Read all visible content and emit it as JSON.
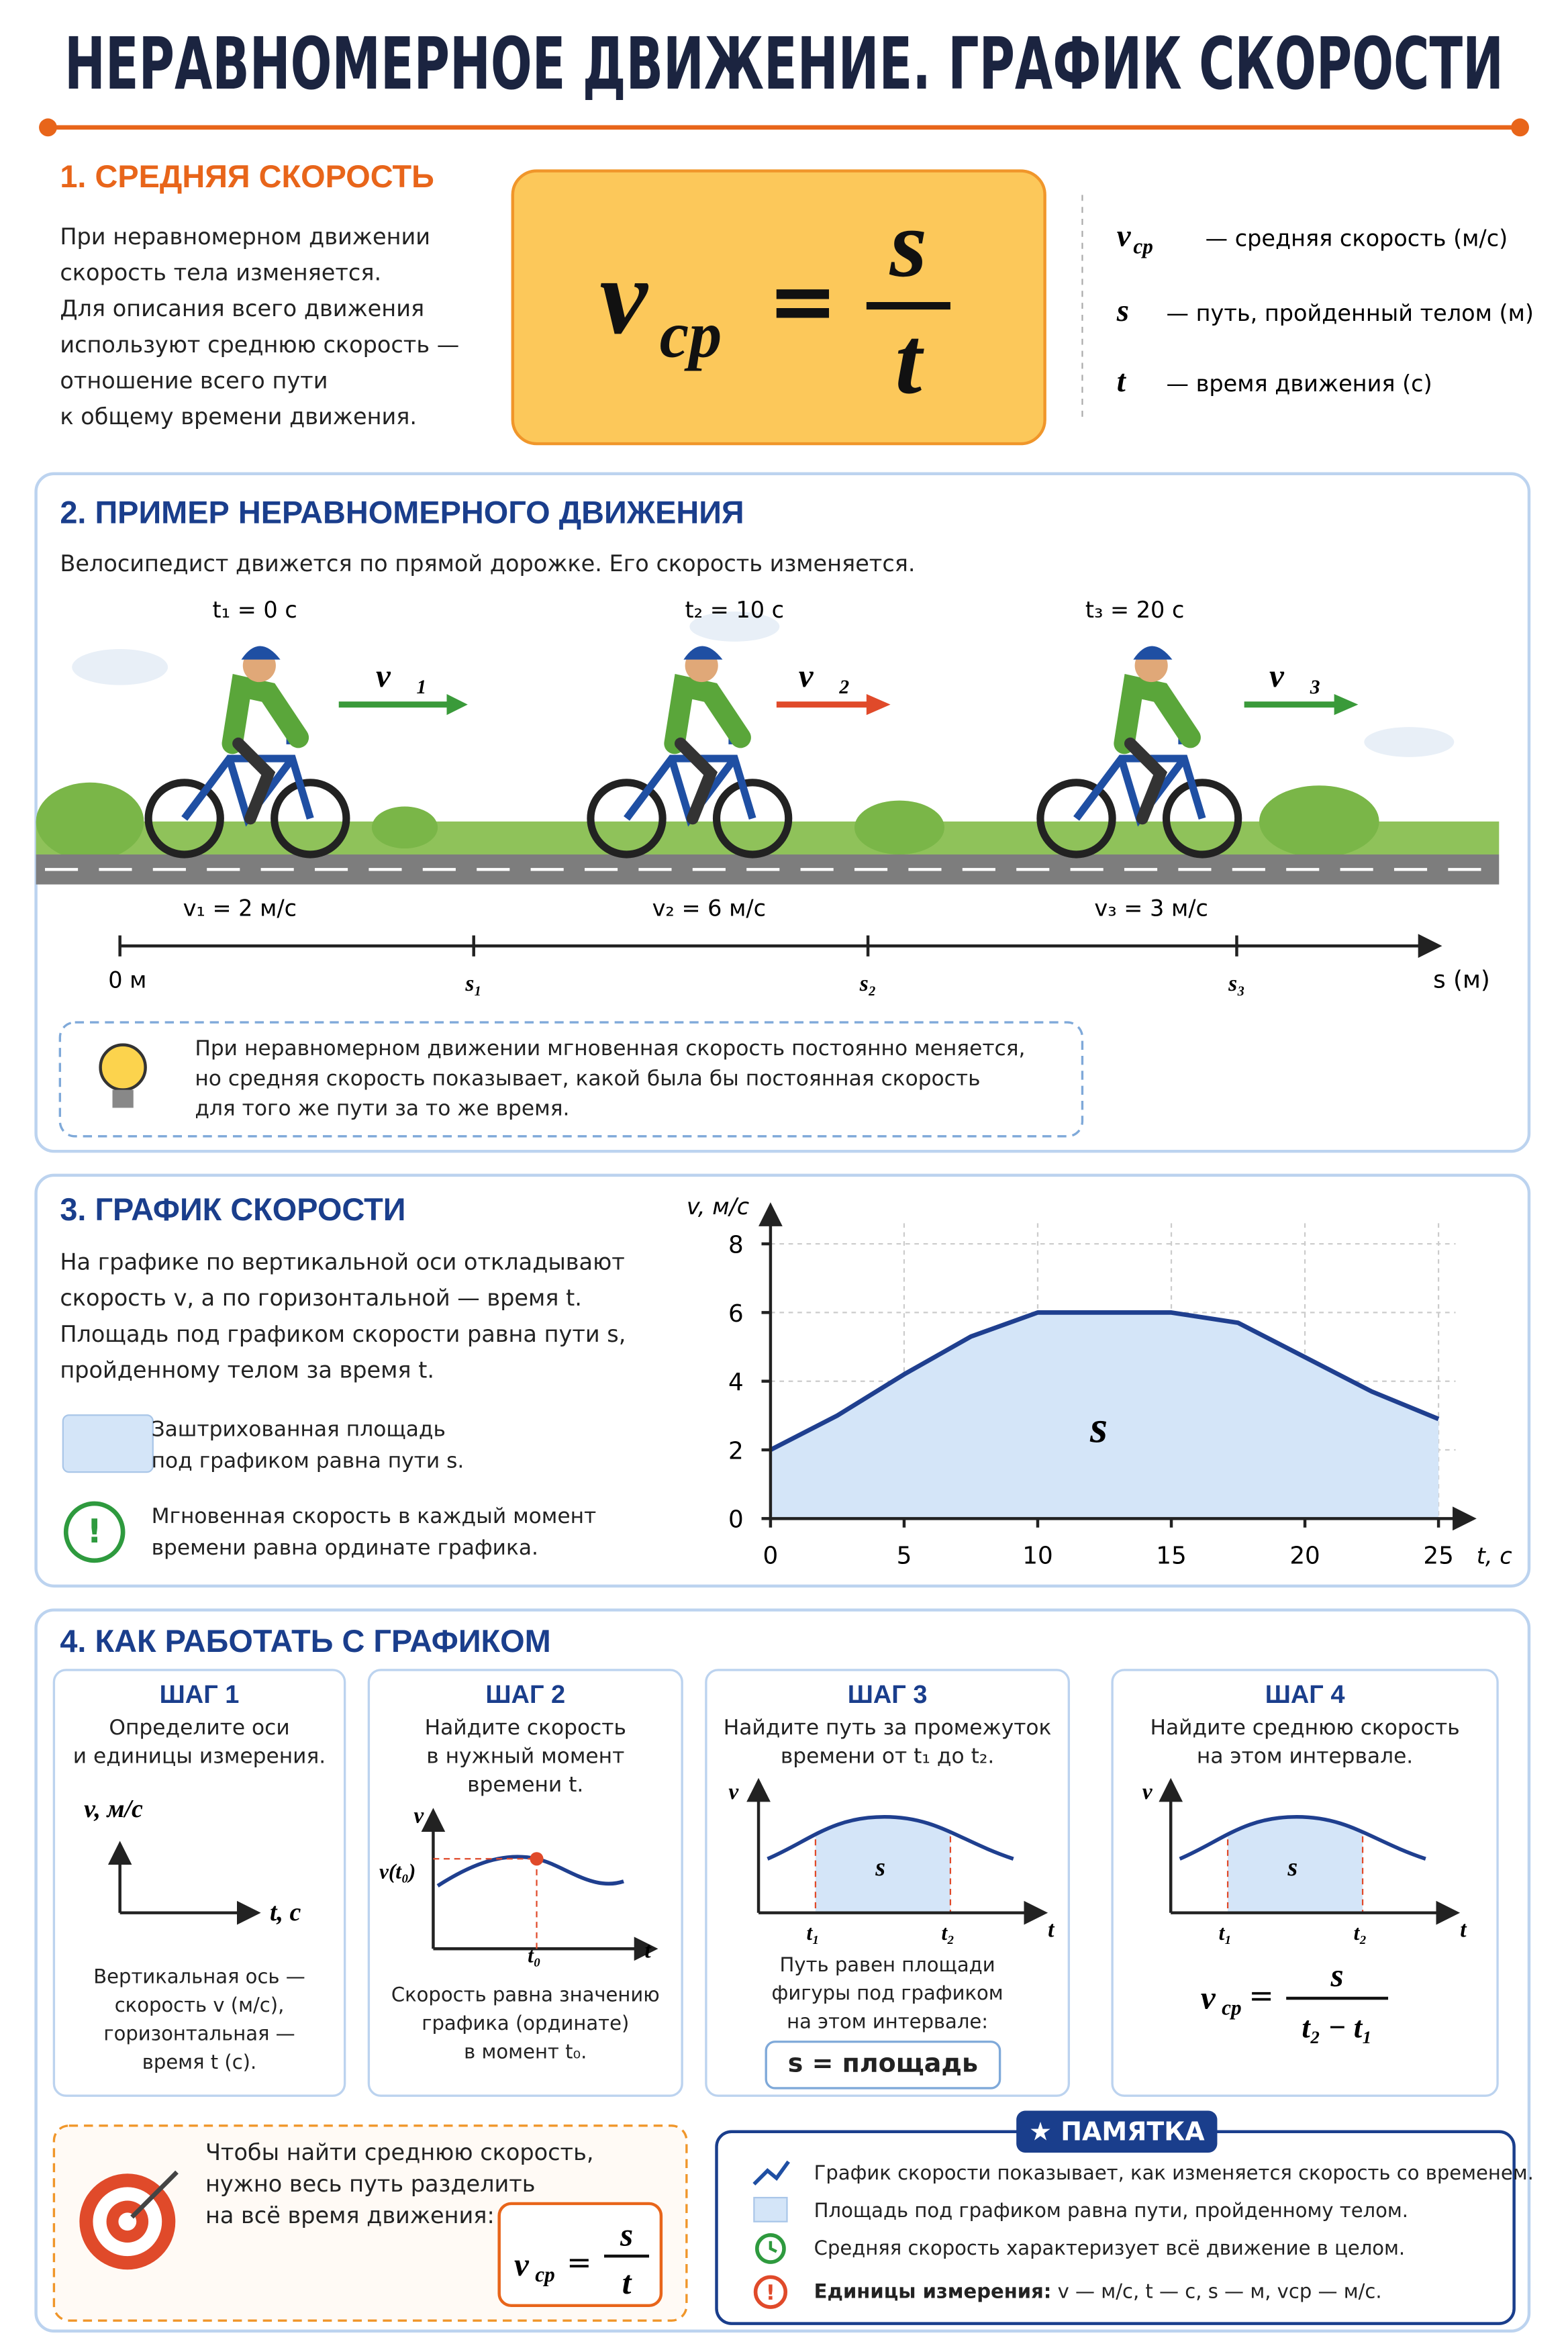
{
  "title": "НЕРАВНОМЕРНОЕ ДВИЖЕНИЕ. ГРАФИК СКОРОСТИ",
  "section1": {
    "heading": "1. СРЕДНЯЯ СКОРОСТЬ",
    "text": "При неравномерном движении\nскорость тела изменяется.\nДля описания всего движения\nиспользуют среднюю скорость —\nотношение всего пути\nк общему времени движения.",
    "formula": {
      "v": "v",
      "sub": "ср",
      "eq": "=",
      "num": "s",
      "den": "t"
    },
    "definitions": [
      {
        "symbol": "v",
        "sub": "ср",
        "text": "— средняя скорость (м/с)"
      },
      {
        "symbol": "s",
        "text": "— путь, пройденный телом (м)"
      },
      {
        "symbol": "t",
        "text": "— время движения (с)"
      }
    ]
  },
  "section2": {
    "heading": "2. ПРИМЕР НЕРАВНОМЕРНОГО ДВИЖЕНИЯ",
    "text": "Велосипедист движется по прямой дорожке. Его скорость изменяется.",
    "riders": [
      {
        "time": "t₁ = 0 с",
        "vector": "v⃗₁",
        "speed": "v₁ = 2 м/с"
      },
      {
        "time": "t₂ = 10 с",
        "vector": "v⃗₂",
        "speed": "v₂ = 6 м/с"
      },
      {
        "time": "t₃ = 20 с",
        "vector": "v⃗₃",
        "speed": "v₃ = 3 м/с"
      }
    ],
    "axis_labels": [
      "0 м",
      "s₁",
      "s₂",
      "s₃",
      "s (м)"
    ],
    "note": "При неравномерном движении мгновенная скорость постоянно меняется,\nно средняя скорость показывает, какой была бы постоянная скорость\nдля того же пути за то же время."
  },
  "section3": {
    "heading": "3. ГРАФИК СКОРОСТИ",
    "text": "На графике по вертикальной оси откладывают\nскорость v, а по горизонтальной — время t.\nПлощадь под графиком скорости равна пути s,\nпройденному телом за время t.",
    "legend": [
      "Заштрихованная площадь\nпод графиком равна пути s.",
      "Мгновенная скорость в каждый момент\nвремени равна ординате графика."
    ],
    "icon": "!"
  },
  "chart_data": {
    "type": "area",
    "ylabel": "v, м/с",
    "xlabel": "t, с",
    "area_label": "s",
    "x": [
      0,
      2.5,
      5,
      7.5,
      10,
      12.5,
      15,
      17.5,
      20,
      22.5,
      25
    ],
    "values": [
      2,
      3,
      4.2,
      5.3,
      6,
      6,
      6,
      5.7,
      4.7,
      3.7,
      2.9
    ],
    "color": "#1f3f8f",
    "fill": "#d4e5f8",
    "xlim": [
      0,
      26.2
    ],
    "ylim": [
      0,
      8.6
    ],
    "xticks": [
      0,
      5,
      10,
      15,
      20,
      25
    ],
    "yticks": [
      0,
      2,
      4,
      6,
      8
    ],
    "grid": true
  },
  "section4": {
    "heading": "4. КАК РАБОТАТЬ С ГРАФИКОМ",
    "steps": [
      {
        "title": "ШАГ 1",
        "text": "Определите оси\nи единицы измерения.",
        "labels": [
          "v, м/с",
          "t, с"
        ],
        "caption": "Вертикальная ось —\nскорость v (м/с),\nгоризонтальная —\nвремя t (с)."
      },
      {
        "title": "ШАГ 2",
        "text": "Найдите скорость\nв нужный момент\nвремени t.",
        "labels": [
          "v",
          "v(t₀)",
          "t₀",
          "t"
        ],
        "caption": "Скорость равна значению\nграфика (ординате)\nв момент t₀."
      },
      {
        "title": "ШАГ 3",
        "text": "Найдите путь за промежуток\nвремени от t₁ до t₂.",
        "labels": [
          "v",
          "s",
          "t₁",
          "t₂",
          "t"
        ],
        "caption": "Путь равен площади\nфигуры под графиком\nна этом интервале:",
        "box": "s = площадь"
      },
      {
        "title": "ШАГ 4",
        "text": "Найдите среднюю скорость\nна этом интервале.",
        "labels": [
          "v",
          "s",
          "t₁",
          "t₂",
          "t"
        ],
        "formula": {
          "v": "v",
          "sub": "ср",
          "eq": "=",
          "num": "s",
          "den": "t₂ − t₁"
        }
      }
    ],
    "target": {
      "text": "Чтобы найти среднюю скорость,\nнужно весь путь разделить\nна всё время движения:",
      "formula": {
        "v": "v",
        "sub": "ср",
        "eq": "=",
        "num": "s",
        "den": "t"
      }
    },
    "memo": {
      "title": "★ ПАМЯТКА",
      "items": [
        "График скорости показывает, как изменяется скорость со временем.",
        "Площадь под графиком равна пути, пройденному телом.",
        "Средняя скорость характеризует всё движение в целом."
      ],
      "units_label": "Единицы измерения:",
      "units": "v — м/с, t — с, s — м, vср — м/с.",
      "warn": "!"
    }
  }
}
